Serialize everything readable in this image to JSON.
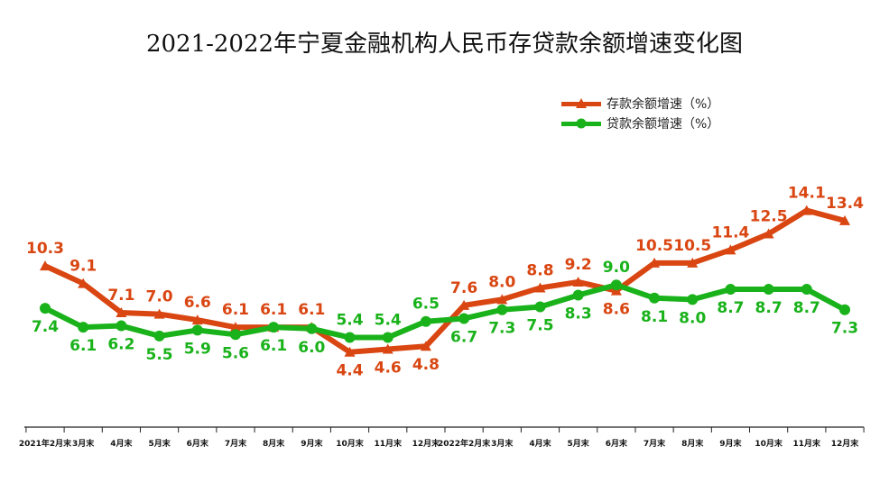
{
  "chart_data": {
    "type": "line",
    "title": "2021-2022年宁夏金融机构人民币存贷款余额增速变化图",
    "categories": [
      "2021年2月末",
      "3月末",
      "4月末",
      "5月末",
      "6月末",
      "7月末",
      "8月末",
      "9月末",
      "10月末",
      "11月末",
      "12月末",
      "2022年2月末",
      "3月末",
      "4月末",
      "5月末",
      "6月末",
      "7月末",
      "8月末",
      "9月末",
      "10月末",
      "11月末",
      "12月末"
    ],
    "series": [
      {
        "name": "存款余额增速（%）",
        "color": "#d94612",
        "marker": "triangle",
        "values": [
          10.3,
          9.1,
          7.1,
          7.0,
          6.6,
          6.1,
          6.1,
          6.1,
          4.4,
          4.6,
          4.8,
          7.6,
          8.0,
          8.8,
          9.2,
          8.6,
          10.5,
          10.5,
          11.4,
          12.5,
          14.1,
          13.4
        ]
      },
      {
        "name": "贷款余额增速（%）",
        "color": "#19b21a",
        "marker": "circle",
        "values": [
          7.4,
          6.1,
          6.2,
          5.5,
          5.9,
          5.6,
          6.1,
          6.0,
          5.4,
          5.4,
          6.5,
          6.7,
          7.3,
          7.5,
          8.3,
          9.0,
          8.1,
          8.0,
          8.7,
          8.7,
          8.7,
          7.3
        ]
      }
    ],
    "legend_position": "top-right",
    "grid": false
  }
}
